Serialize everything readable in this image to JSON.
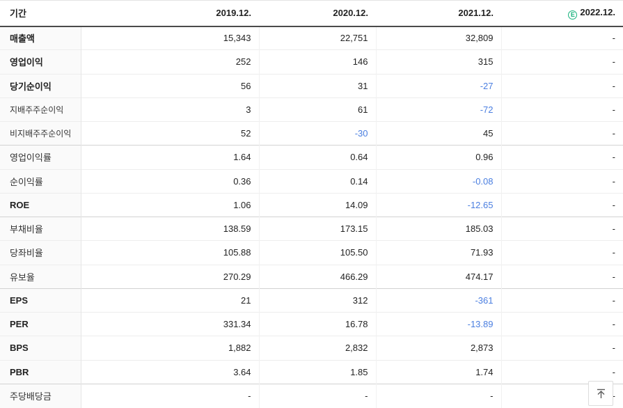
{
  "table": {
    "period_label": "기간",
    "columns": [
      {
        "label": "2019.12.",
        "estimate": false
      },
      {
        "label": "2020.12.",
        "estimate": false
      },
      {
        "label": "2021.12.",
        "estimate": false
      },
      {
        "label": "2022.12.",
        "estimate": true
      }
    ],
    "estimate_icon_letter": "E",
    "rows": [
      {
        "label": "매출액",
        "bold": true,
        "small": false,
        "group_start": false,
        "values": [
          "15,343",
          "22,751",
          "32,809",
          "-"
        ]
      },
      {
        "label": "영업이익",
        "bold": true,
        "small": false,
        "group_start": false,
        "values": [
          "252",
          "146",
          "315",
          "-"
        ]
      },
      {
        "label": "당기순이익",
        "bold": true,
        "small": false,
        "group_start": false,
        "values": [
          "56",
          "31",
          "-27",
          "-"
        ]
      },
      {
        "label": "지배주주순이익",
        "bold": false,
        "small": true,
        "group_start": false,
        "values": [
          "3",
          "61",
          "-72",
          "-"
        ]
      },
      {
        "label": "비지배주주순이익",
        "bold": false,
        "small": true,
        "group_start": false,
        "values": [
          "52",
          "-30",
          "45",
          "-"
        ]
      },
      {
        "label": "영업이익률",
        "bold": false,
        "small": false,
        "group_start": true,
        "values": [
          "1.64",
          "0.64",
          "0.96",
          "-"
        ]
      },
      {
        "label": "순이익률",
        "bold": false,
        "small": false,
        "group_start": false,
        "values": [
          "0.36",
          "0.14",
          "-0.08",
          "-"
        ]
      },
      {
        "label": "ROE",
        "bold": true,
        "small": false,
        "group_start": false,
        "values": [
          "1.06",
          "14.09",
          "-12.65",
          "-"
        ]
      },
      {
        "label": "부채비율",
        "bold": false,
        "small": false,
        "group_start": true,
        "values": [
          "138.59",
          "173.15",
          "185.03",
          "-"
        ]
      },
      {
        "label": "당좌비율",
        "bold": false,
        "small": false,
        "group_start": false,
        "values": [
          "105.88",
          "105.50",
          "71.93",
          "-"
        ]
      },
      {
        "label": "유보율",
        "bold": false,
        "small": false,
        "group_start": false,
        "values": [
          "270.29",
          "466.29",
          "474.17",
          "-"
        ]
      },
      {
        "label": "EPS",
        "bold": true,
        "small": false,
        "group_start": true,
        "values": [
          "21",
          "312",
          "-361",
          "-"
        ]
      },
      {
        "label": "PER",
        "bold": true,
        "small": false,
        "group_start": false,
        "values": [
          "331.34",
          "16.78",
          "-13.89",
          "-"
        ]
      },
      {
        "label": "BPS",
        "bold": true,
        "small": false,
        "group_start": false,
        "values": [
          "1,882",
          "2,832",
          "2,873",
          "-"
        ]
      },
      {
        "label": "PBR",
        "bold": true,
        "small": false,
        "group_start": false,
        "values": [
          "3.64",
          "1.85",
          "1.74",
          "-"
        ]
      },
      {
        "label": "주당배당금",
        "bold": false,
        "small": false,
        "group_start": true,
        "values": [
          "-",
          "-",
          "-",
          "-"
        ]
      }
    ]
  },
  "colors": {
    "negative_value": "#4a7ee0",
    "estimate_green": "#17b27c",
    "header_border": "#4a4a4a",
    "label_bg": "#fafafa"
  }
}
